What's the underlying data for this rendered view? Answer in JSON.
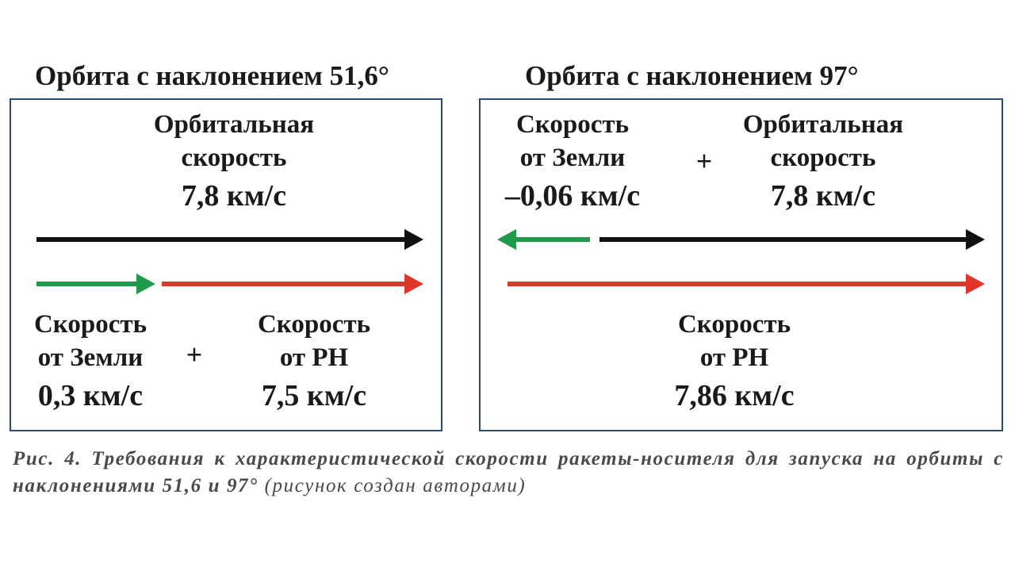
{
  "left": {
    "title": "Орбита с наклонением 51,6°",
    "orbital_label_1": "Орбитальная",
    "orbital_label_2": "скорость",
    "orbital_value": "7,8 км/с",
    "earth_label_1": "Скорость",
    "earth_label_2": "от Земли",
    "earth_value": "0,3 км/с",
    "plus": "+",
    "rn_label_1": "Скорость",
    "rn_label_2": "от РН",
    "rn_value": "7,5 км/с"
  },
  "right": {
    "title": "Орбита с наклонением 97°",
    "earth_label_1": "Скорость",
    "earth_label_2": "от Земли",
    "earth_value": "–0,06 км/с",
    "plus": "+",
    "orbital_label_1": "Орбитальная",
    "orbital_label_2": "скорость",
    "orbital_value": "7,8 км/с",
    "rn_label_1": "Скорость",
    "rn_label_2": "от РН",
    "rn_value": "7,86 км/с"
  },
  "colors": {
    "black": "#111111",
    "green": "#1f9a4b",
    "red": "#e0362a",
    "border": "#2a4a7a"
  },
  "caption": {
    "main": "Рис. 4. Требования к характеристической скорости ракеты-носителя для запуска на орбиты с наклонениями 51,6 и 97°",
    "note": "(рисунок создан авторами)"
  }
}
